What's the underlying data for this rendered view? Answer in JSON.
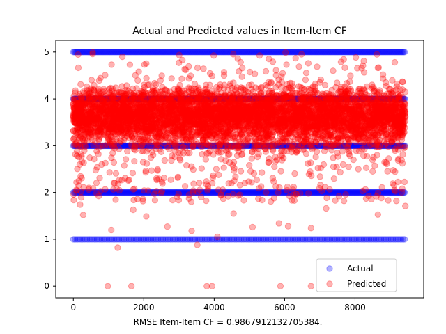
{
  "chart_data": {
    "type": "scatter",
    "title": "Actual and Predicted values in Item-Item CF",
    "xlabel": "RMSE Item-Item CF = 0.9867912132705384.",
    "ylabel": "",
    "xlim": [
      -500,
      9950
    ],
    "ylim": [
      -0.25,
      5.25
    ],
    "xticks": [
      0,
      2000,
      4000,
      6000,
      8000
    ],
    "xtick_labels": [
      "0",
      "2000",
      "4000",
      "6000",
      "8000"
    ],
    "yticks": [
      0,
      1,
      2,
      3,
      4,
      5
    ],
    "ytick_labels": [
      "0",
      "1",
      "2",
      "3",
      "4",
      "5"
    ],
    "grid": false,
    "legend_position": "lower right",
    "n_points": 9430,
    "series": [
      {
        "name": "Actual",
        "color": "#0000ff",
        "alpha": 0.3,
        "marker": "circle",
        "distinct_values": [
          1,
          2,
          3,
          4,
          5
        ],
        "x_range": [
          0,
          9430
        ]
      },
      {
        "name": "Predicted",
        "color": "#ff0000",
        "alpha": 0.3,
        "marker": "circle",
        "dense_band": [
          3.0,
          4.5
        ],
        "approx_range": [
          0,
          5.05
        ],
        "outliers": [
          {
            "x": 980,
            "y": 0
          },
          {
            "x": 1650,
            "y": 0
          },
          {
            "x": 3790,
            "y": 0
          },
          {
            "x": 3940,
            "y": 0
          },
          {
            "x": 5880,
            "y": 0
          },
          {
            "x": 6750,
            "y": 0
          },
          {
            "x": 1260,
            "y": 0.82
          },
          {
            "x": 3520,
            "y": 0.88
          },
          {
            "x": 1080,
            "y": 1.2
          },
          {
            "x": 4090,
            "y": 1.05
          },
          {
            "x": 2670,
            "y": 1.27
          },
          {
            "x": 3360,
            "y": 1.18
          },
          {
            "x": 5090,
            "y": 1.26
          },
          {
            "x": 6100,
            "y": 1.28
          },
          {
            "x": 6750,
            "y": 1.24
          },
          {
            "x": 5840,
            "y": 1.34
          },
          {
            "x": 190,
            "y": 1.74
          },
          {
            "x": 280,
            "y": 1.52
          },
          {
            "x": 1700,
            "y": 1.63
          },
          {
            "x": 2070,
            "y": 1.49
          },
          {
            "x": 4550,
            "y": 1.55
          },
          {
            "x": 7180,
            "y": 1.66
          },
          {
            "x": 8650,
            "y": 1.53
          },
          {
            "x": 9430,
            "y": 1.71
          }
        ]
      }
    ]
  }
}
